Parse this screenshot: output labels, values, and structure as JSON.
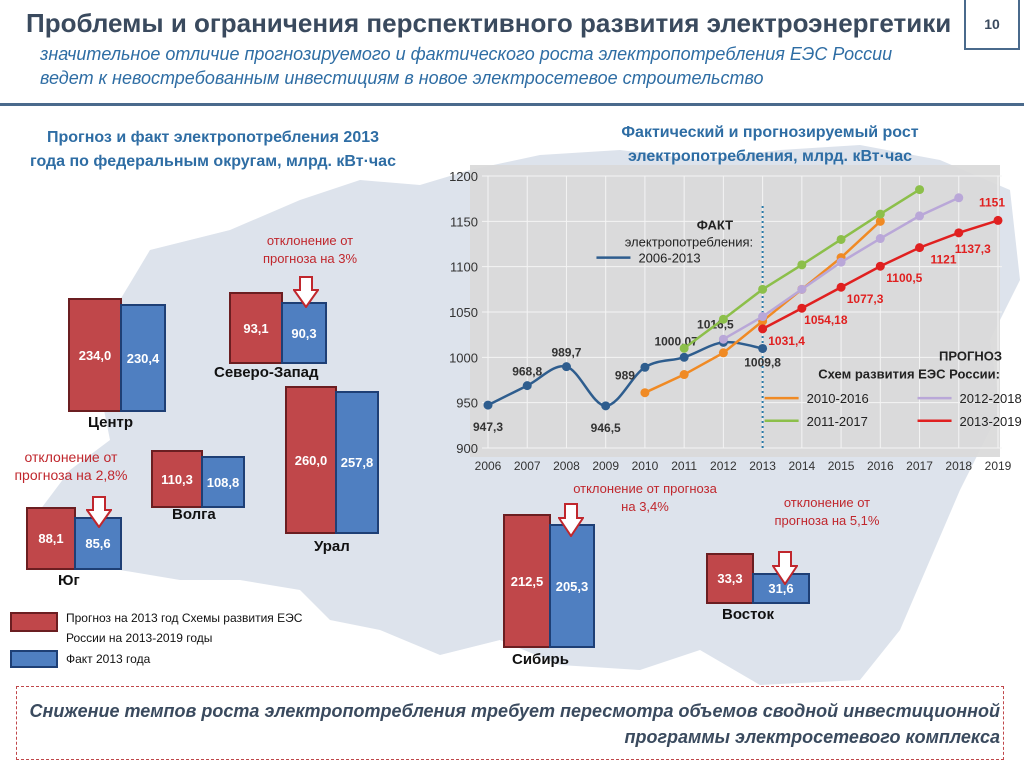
{
  "page_number": "10",
  "header": {
    "title": "Проблемы и ограничения перспективного развития электроэнергетики",
    "subtitle": "значительное отличие прогнозируемого и фактического роста электропотребления ЕЭС России ведет к невостребованным инвестициям в новое электросетевое строительство"
  },
  "left_section": {
    "title": "Прогноз и факт электропотребления 2013 года по федеральным округам, млрд. кВт·час",
    "regions": [
      {
        "name": "Центр",
        "forecast": "234,0",
        "fact": "230,4",
        "deviation": ""
      },
      {
        "name": "Северо-Запад",
        "forecast": "93,1",
        "fact": "90,3",
        "deviation": "отклонение от прогноза на 3%"
      },
      {
        "name": "Урал",
        "forecast": "260,0",
        "fact": "257,8",
        "deviation": ""
      },
      {
        "name": "Волга",
        "forecast": "110,3",
        "fact": "108,8",
        "deviation": ""
      },
      {
        "name": "Юг",
        "forecast": "88,1",
        "fact": "85,6",
        "deviation": "отклонение от прогноза на 2,8%"
      },
      {
        "name": "Сибирь",
        "forecast": "212,5",
        "fact": "205,3",
        "deviation": "отклонение от прогноза на 3,4%"
      },
      {
        "name": "Восток",
        "forecast": "33,3",
        "fact": "31,6",
        "deviation": "отклонение от прогноза на 5,1%"
      }
    ],
    "legend": {
      "forecast": "Прогноз на 2013 год Схемы развития ЕЭС России на 2013-2019 годы",
      "fact": "Факт 2013 года"
    },
    "colors": {
      "forecast": "#c0474a",
      "fact": "#4f7fc1"
    }
  },
  "chart_data": {
    "type": "line",
    "title": "Фактический и прогнозируемый рост электропотребления, млрд. кВт·час",
    "x": [
      2006,
      2007,
      2008,
      2009,
      2010,
      2011,
      2012,
      2013,
      2014,
      2015,
      2016,
      2017,
      2018,
      2019
    ],
    "ylim": [
      900,
      1200
    ],
    "yticks": [
      900,
      950,
      1000,
      1050,
      1100,
      1150,
      1200
    ],
    "grid": true,
    "fact_legend": {
      "heading": "ФАКТ",
      "subheading": "электропотребления:"
    },
    "forecast_legend": {
      "heading": "ПРОГНОЗ",
      "subheading": "Схем развития ЕЭС России:"
    },
    "series": [
      {
        "name": "2006-2013",
        "kind": "fact",
        "color": "#2e5d8e",
        "x": [
          2006,
          2007,
          2008,
          2009,
          2010,
          2011,
          2012,
          2013
        ],
        "values": [
          947.3,
          968.8,
          989.7,
          946.5,
          989,
          1000.07,
          1016.5,
          1009.8
        ],
        "labels": [
          "947,3",
          "968,8",
          "989,7",
          "946,5",
          "989",
          "1000,07",
          "1016,5",
          "1009,8"
        ]
      },
      {
        "name": "2010-2016",
        "kind": "forecast",
        "color": "#f08a24",
        "x": [
          2010,
          2011,
          2012,
          2013,
          2014,
          2015,
          2016
        ],
        "values": [
          961,
          981,
          1005,
          1040,
          1075,
          1110,
          1150
        ]
      },
      {
        "name": "2011-2017",
        "kind": "forecast",
        "color": "#8cbf4a",
        "x": [
          2011,
          2012,
          2013,
          2014,
          2015,
          2016,
          2017
        ],
        "values": [
          1010,
          1042,
          1075,
          1102,
          1130,
          1158,
          1185
        ]
      },
      {
        "name": "2012-2018",
        "kind": "forecast",
        "color": "#b9a7d8",
        "x": [
          2012,
          2013,
          2014,
          2015,
          2016,
          2017,
          2018
        ],
        "values": [
          1020,
          1045,
          1075,
          1105,
          1131,
          1156,
          1176
        ]
      },
      {
        "name": "2013-2019",
        "kind": "forecast",
        "color": "#e02020",
        "x": [
          2013,
          2014,
          2015,
          2016,
          2017,
          2018,
          2019
        ],
        "values": [
          1031.4,
          1054.18,
          1077.3,
          1100.5,
          1121,
          1137.3,
          1151
        ],
        "labels": [
          "1031,4",
          "1054,18",
          "1077,3",
          "1100,5",
          "1121",
          "1137,3",
          "1151"
        ]
      }
    ]
  },
  "footer": {
    "text": "Снижение темпов роста электропотребления требует пересмотра объемов сводной инвестиционной программы электросетевого комплекса"
  }
}
